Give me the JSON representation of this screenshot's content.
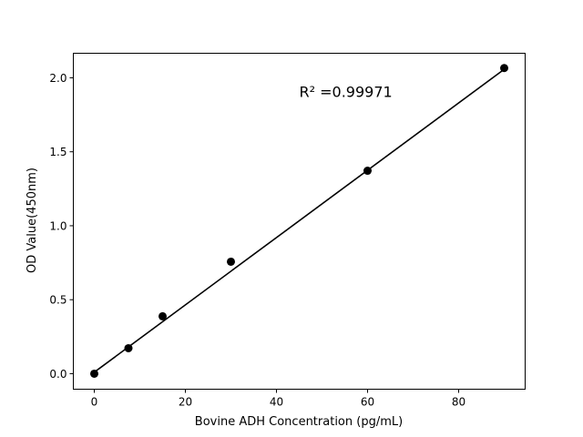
{
  "chart_data": {
    "type": "scatter",
    "title": "",
    "xlabel": "Bovine ADH Concentration (pg/mL)",
    "ylabel": "OD Value(450nm)",
    "xlim": [
      -4.6,
      94.6
    ],
    "ylim": [
      -0.105,
      2.166
    ],
    "xticks": [
      0,
      20,
      40,
      60,
      80
    ],
    "xtick_labels": [
      "0",
      "20",
      "40",
      "60",
      "80"
    ],
    "yticks": [
      0.0,
      0.5,
      1.0,
      1.5,
      2.0
    ],
    "ytick_labels": [
      "0.0",
      "0.5",
      "1.0",
      "1.5",
      "2.0"
    ],
    "grid": false,
    "series": [
      {
        "x": [
          0,
          7.5,
          15,
          30,
          60,
          90
        ],
        "y": [
          0.0,
          0.172,
          0.388,
          0.757,
          1.372,
          2.066
        ],
        "color": "#000000",
        "marker": "circle"
      }
    ],
    "fit_line": {
      "slope": 0.02275,
      "intercept": 0.01,
      "x_range": [
        0,
        90
      ],
      "color": "#000000"
    },
    "annotation": {
      "text": "R² =0.99971",
      "x": 45,
      "y": 1.87
    }
  }
}
